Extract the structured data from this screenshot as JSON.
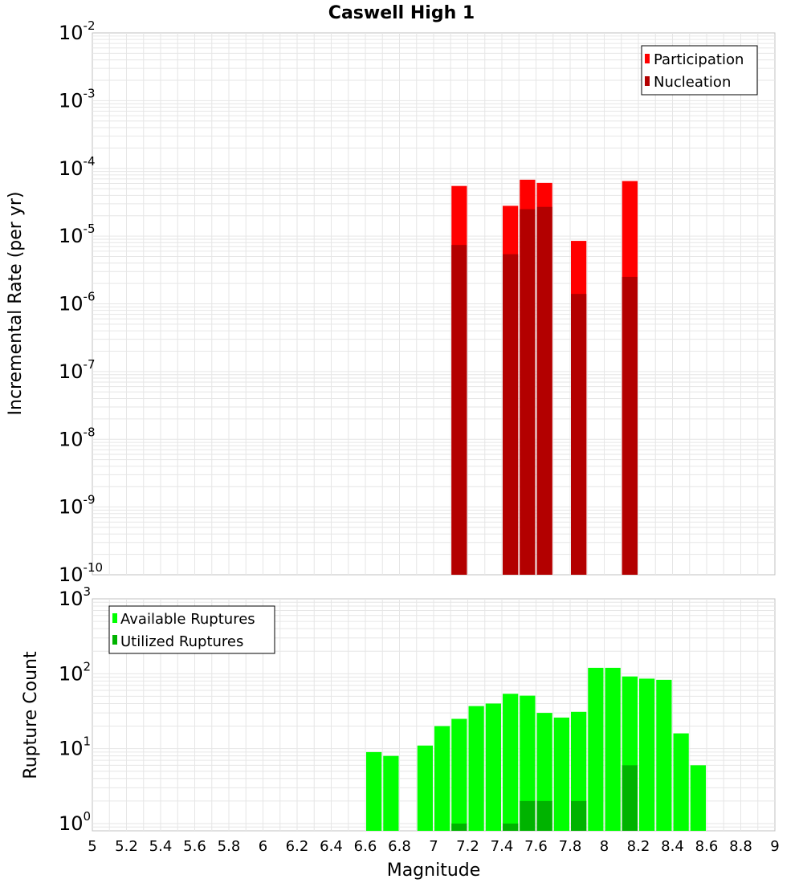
{
  "title": "Caswell High 1",
  "xlabel": "Magnitude",
  "x_ticks": [
    "5",
    "5.2",
    "5.4",
    "5.6",
    "5.8",
    "6",
    "6.2",
    "6.4",
    "6.6",
    "6.8",
    "7",
    "7.2",
    "7.4",
    "7.6",
    "7.8",
    "8",
    "8.2",
    "8.4",
    "8.6",
    "8.8",
    "9"
  ],
  "colors": {
    "participation": "#ff0000",
    "nucleation": "#b30000",
    "available": "#00ff00",
    "utilized": "#00b300",
    "grid": "#e6e6e6",
    "frame": "#c0c0c0"
  },
  "chart_data": [
    {
      "type": "bar",
      "title": "Caswell High 1",
      "xlabel": "Magnitude",
      "ylabel": "Incremental Rate (per yr)",
      "xlim": [
        5,
        9
      ],
      "ylim": [
        1e-10,
        0.01
      ],
      "y_scale": "log",
      "bin_width": 0.1,
      "legend": {
        "placement": "top-right",
        "entries": [
          "Participation",
          "Nucleation"
        ]
      },
      "y_ticks": [
        {
          "base": "10",
          "exp": "-10",
          "value": 1e-10
        },
        {
          "base": "10",
          "exp": "-9",
          "value": 1e-09
        },
        {
          "base": "10",
          "exp": "-8",
          "value": 1e-08
        },
        {
          "base": "10",
          "exp": "-7",
          "value": 1e-07
        },
        {
          "base": "10",
          "exp": "-6",
          "value": 1e-06
        },
        {
          "base": "10",
          "exp": "-5",
          "value": 1e-05
        },
        {
          "base": "10",
          "exp": "-4",
          "value": 0.0001
        },
        {
          "base": "10",
          "exp": "-3",
          "value": 0.001
        },
        {
          "base": "10",
          "exp": "-2",
          "value": 0.01
        }
      ],
      "series": [
        {
          "name": "Participation",
          "x": [
            7.15,
            7.45,
            7.55,
            7.65,
            7.85,
            8.15
          ],
          "values": [
            5.5e-05,
            2.8e-05,
            6.8e-05,
            6.1e-05,
            8.5e-06,
            6.5e-05
          ]
        },
        {
          "name": "Nucleation",
          "x": [
            7.15,
            7.45,
            7.55,
            7.65,
            7.85,
            8.15
          ],
          "values": [
            7.4e-06,
            5.4e-06,
            2.5e-05,
            2.7e-05,
            1.4e-06,
            2.5e-06
          ]
        }
      ]
    },
    {
      "type": "bar",
      "xlabel": "Magnitude",
      "ylabel": "Rupture Count",
      "xlim": [
        5,
        9
      ],
      "ylim": [
        0.8,
        1000
      ],
      "y_scale": "log",
      "bin_width": 0.1,
      "legend": {
        "placement": "top-left",
        "entries": [
          "Available Ruptures",
          "Utilized Ruptures"
        ]
      },
      "y_ticks": [
        {
          "base": "10",
          "exp": "0",
          "value": 1
        },
        {
          "base": "10",
          "exp": "1",
          "value": 10
        },
        {
          "base": "10",
          "exp": "2",
          "value": 100
        },
        {
          "base": "10",
          "exp": "3",
          "value": 1000
        }
      ],
      "series": [
        {
          "name": "Available Ruptures",
          "x": [
            6.65,
            6.75,
            6.95,
            7.05,
            7.15,
            7.25,
            7.35,
            7.45,
            7.55,
            7.65,
            7.75,
            7.85,
            7.95,
            8.05,
            8.15,
            8.25,
            8.35,
            8.45,
            8.55
          ],
          "values": [
            9,
            8,
            11,
            20,
            25,
            37,
            40,
            54,
            51,
            30,
            26,
            31,
            120,
            120,
            92,
            86,
            83,
            16,
            6
          ]
        },
        {
          "name": "Utilized Ruptures",
          "x": [
            7.15,
            7.45,
            7.55,
            7.65,
            7.85,
            8.15
          ],
          "values": [
            1,
            1,
            2,
            2,
            2,
            6
          ]
        }
      ]
    }
  ]
}
